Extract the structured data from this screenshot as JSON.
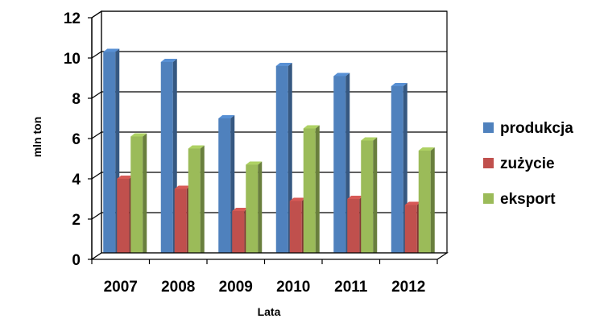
{
  "chart_data": {
    "type": "bar",
    "style": "3d-clustered-column",
    "categories": [
      "2007",
      "2008",
      "2009",
      "2010",
      "2011",
      "2012"
    ],
    "series": [
      {
        "name": "produkcja",
        "color": "#4f81bd",
        "values": [
          10.3,
          9.8,
          7.0,
          9.6,
          9.1,
          8.6
        ]
      },
      {
        "name": "zużycie",
        "color": "#c0504d",
        "values": [
          4.0,
          3.5,
          2.4,
          2.9,
          3.0,
          2.7
        ]
      },
      {
        "name": "eksport",
        "color": "#9bbb59",
        "values": [
          6.1,
          5.5,
          4.7,
          6.5,
          5.9,
          5.4
        ]
      }
    ],
    "xlabel": "Lata",
    "ylabel": "mln ton",
    "ylim": [
      0,
      12
    ],
    "yticks": [
      "0",
      "2",
      "4",
      "6",
      "8",
      "10",
      "12"
    ],
    "grid": true,
    "legend_position": "right"
  }
}
